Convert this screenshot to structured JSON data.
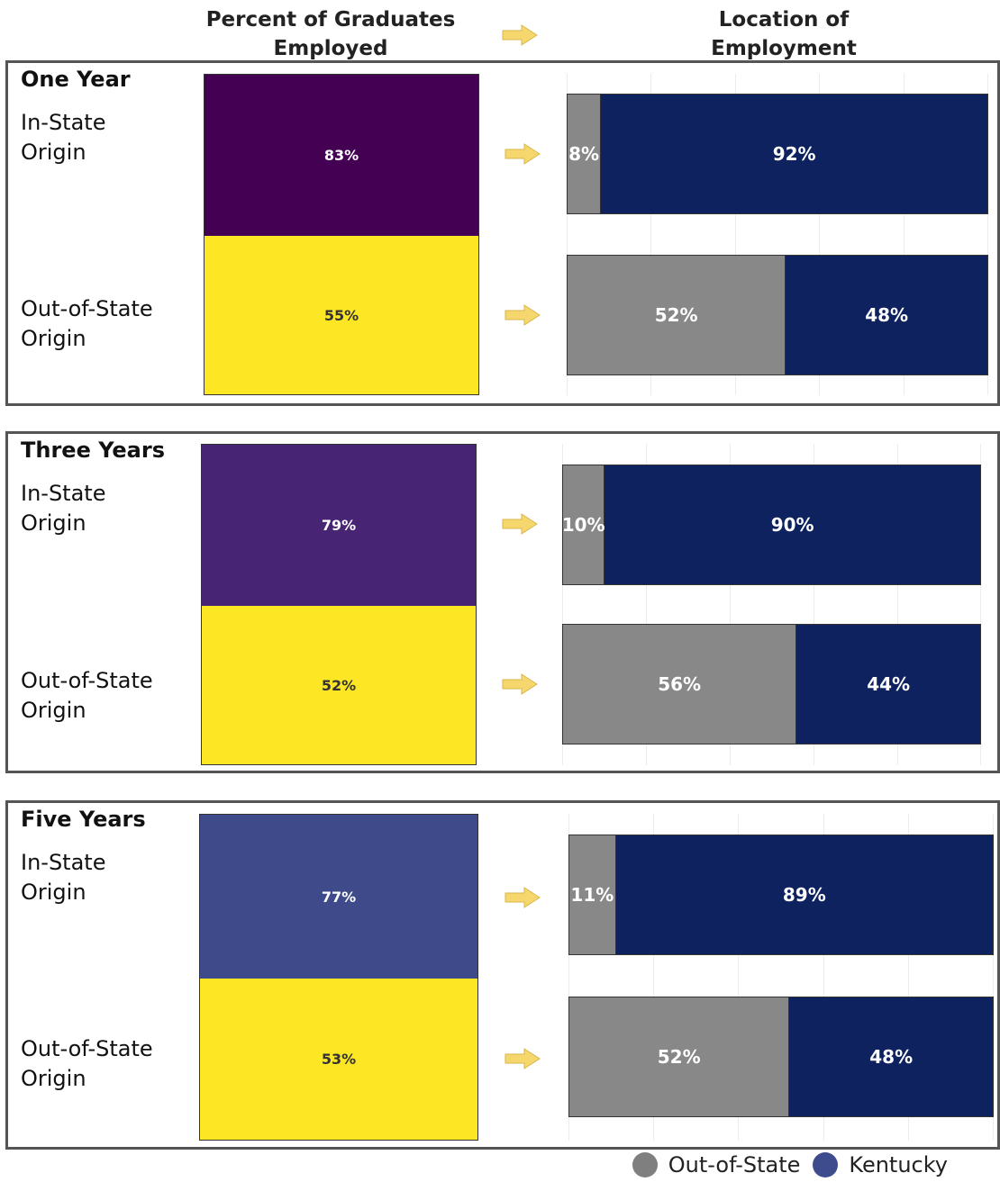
{
  "headers": {
    "left": [
      "Percent of Graduates",
      "Employed"
    ],
    "right": [
      "Location of",
      "Employment"
    ]
  },
  "colors": {
    "out_of_state": "#888888",
    "kentucky": "#0d225e",
    "arrow": "#f5d76e",
    "out_of_state_origin_employed": "#fde725"
  },
  "origin_labels": {
    "in_state": [
      "In-State",
      "Origin"
    ],
    "out_state": [
      "Out-of-State",
      "Origin"
    ]
  },
  "legend": [
    {
      "label": "Out-of-State",
      "color": "#7f7f7f"
    },
    {
      "label": "Kentucky",
      "color": "#3e4c8e"
    }
  ],
  "chart_data": [
    {
      "period": "One Year",
      "employed": [
        {
          "origin": "In-State Origin",
          "value": 83,
          "label": "83%",
          "color": "#440154"
        },
        {
          "origin": "Out-of-State Origin",
          "value": 55,
          "label": "55%",
          "color": "#fde725"
        }
      ],
      "location": [
        {
          "origin": "In-State Origin",
          "out_of_state": 8,
          "kentucky": 92,
          "labels": [
            "8%",
            "92%"
          ]
        },
        {
          "origin": "Out-of-State Origin",
          "out_of_state": 52,
          "kentucky": 48,
          "labels": [
            "52%",
            "48%"
          ]
        }
      ]
    },
    {
      "period": "Three Years",
      "employed": [
        {
          "origin": "In-State Origin",
          "value": 79,
          "label": "79%",
          "color": "#482574"
        },
        {
          "origin": "Out-of-State Origin",
          "value": 52,
          "label": "52%",
          "color": "#fde725"
        }
      ],
      "location": [
        {
          "origin": "In-State Origin",
          "out_of_state": 10,
          "kentucky": 90,
          "labels": [
            "10%",
            "90%"
          ]
        },
        {
          "origin": "Out-of-State Origin",
          "out_of_state": 56,
          "kentucky": 44,
          "labels": [
            "56%",
            "44%"
          ]
        }
      ]
    },
    {
      "period": "Five Years",
      "employed": [
        {
          "origin": "In-State Origin",
          "value": 77,
          "label": "77%",
          "color": "#3e4a89"
        },
        {
          "origin": "Out-of-State Origin",
          "value": 53,
          "label": "53%",
          "color": "#fde725"
        }
      ],
      "location": [
        {
          "origin": "In-State Origin",
          "out_of_state": 11,
          "kentucky": 89,
          "labels": [
            "11%",
            "89%"
          ]
        },
        {
          "origin": "Out-of-State Origin",
          "out_of_state": 52,
          "kentucky": 48,
          "labels": [
            "52%",
            "48%"
          ]
        }
      ]
    }
  ]
}
